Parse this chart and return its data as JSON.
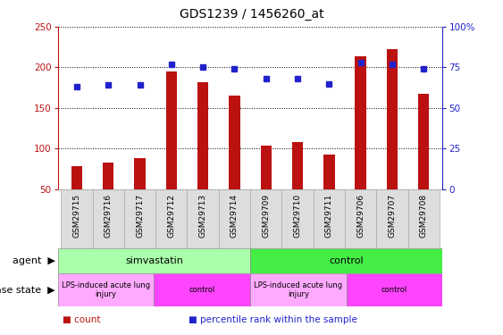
{
  "title": "GDS1239 / 1456260_at",
  "samples": [
    "GSM29715",
    "GSM29716",
    "GSM29717",
    "GSM29712",
    "GSM29713",
    "GSM29714",
    "GSM29709",
    "GSM29710",
    "GSM29711",
    "GSM29706",
    "GSM29707",
    "GSM29708"
  ],
  "counts": [
    78,
    83,
    88,
    195,
    182,
    165,
    104,
    108,
    93,
    214,
    222,
    168
  ],
  "percentiles": [
    63,
    64,
    64,
    77,
    75,
    74,
    68,
    68,
    65,
    78,
    77,
    74
  ],
  "bar_color": "#bb1111",
  "dot_color": "#2222cc",
  "ylim_left": [
    50,
    250
  ],
  "ylim_right": [
    0,
    100
  ],
  "yticks_left": [
    50,
    100,
    150,
    200,
    250
  ],
  "yticks_right": [
    0,
    25,
    50,
    75,
    100
  ],
  "ytick_labels_right": [
    "0",
    "25",
    "50",
    "75",
    "100%"
  ],
  "agent_groups": [
    {
      "label": "simvastatin",
      "start": 0,
      "end": 6,
      "color": "#aaffaa"
    },
    {
      "label": "control",
      "start": 6,
      "end": 12,
      "color": "#44ee44"
    }
  ],
  "disease_groups": [
    {
      "label": "LPS-induced acute lung\ninjury",
      "start": 0,
      "end": 3,
      "color": "#ffaaff"
    },
    {
      "label": "control",
      "start": 3,
      "end": 6,
      "color": "#ff44ff"
    },
    {
      "label": "LPS-induced acute lung\ninjury",
      "start": 6,
      "end": 9,
      "color": "#ffaaff"
    },
    {
      "label": "control",
      "start": 9,
      "end": 12,
      "color": "#ff44ff"
    }
  ],
  "legend_items": [
    {
      "label": "count",
      "color": "#bb1111"
    },
    {
      "label": "percentile rank within the sample",
      "color": "#2222cc"
    }
  ],
  "background_color": "#ffffff",
  "bar_width": 0.35,
  "agent_label": "agent",
  "disease_label": "disease state",
  "label_bg": "#dddddd",
  "grid_color": "#000000"
}
